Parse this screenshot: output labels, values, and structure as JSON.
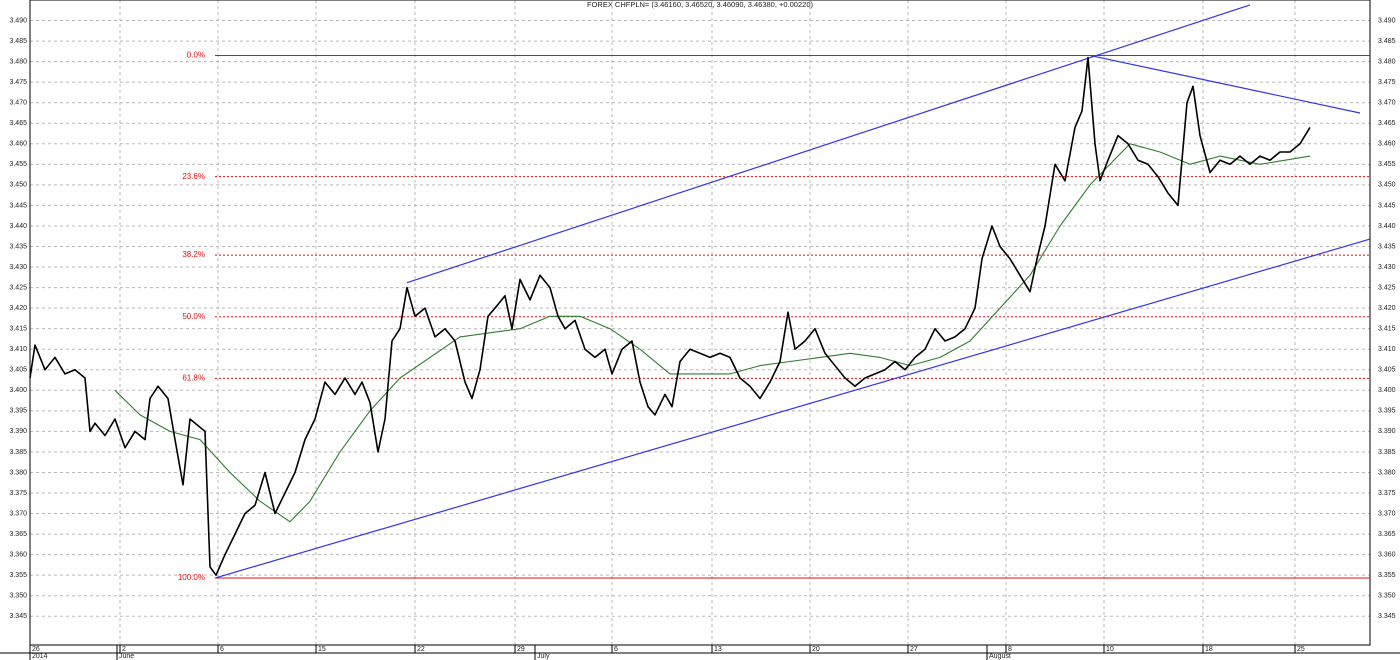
{
  "chart_data": {
    "type": "line",
    "title": "FOREX CHFPLN= (3.46160, 3.46520, 3.46090, 3.46380, +0.00220)",
    "xlim": [
      0,
      134
    ],
    "ylim": [
      3.338,
      3.495
    ],
    "grid": true,
    "xticks": [
      {
        "value": 0,
        "label": "26"
      },
      {
        "value": 9,
        "label": "2"
      },
      {
        "value": 18.8,
        "label": "6"
      },
      {
        "value": 28.6,
        "label": "15"
      },
      {
        "value": 38.5,
        "label": "22"
      },
      {
        "value": 48.5,
        "label": "29"
      },
      {
        "value": 58.2,
        "label": "6"
      },
      {
        "value": 68.2,
        "label": "13"
      },
      {
        "value": 78,
        "label": "20"
      },
      {
        "value": 87.8,
        "label": "27"
      },
      {
        "value": 97.6,
        "label": "8"
      },
      {
        "value": 107.4,
        "label": "10"
      },
      {
        "value": 117.3,
        "label": "18"
      },
      {
        "value": 126.5,
        "label": "25"
      }
    ],
    "period_labels": [
      {
        "value": 0,
        "label": "2014"
      },
      {
        "value": 8.7,
        "label": "June"
      },
      {
        "value": 50.5,
        "label": "July"
      },
      {
        "value": 95.7,
        "label": "August"
      }
    ],
    "yticks": [
      {
        "value": 3.345,
        "label": "3.345"
      },
      {
        "value": 3.35,
        "label": "3.350"
      },
      {
        "value": 3.355,
        "label": "3.355"
      },
      {
        "value": 3.36,
        "label": "3.360"
      },
      {
        "value": 3.365,
        "label": "3.365"
      },
      {
        "value": 3.37,
        "label": "3.370"
      },
      {
        "value": 3.375,
        "label": "3.375"
      },
      {
        "value": 3.38,
        "label": "3.380"
      },
      {
        "value": 3.385,
        "label": "3.385"
      },
      {
        "value": 3.39,
        "label": "3.390"
      },
      {
        "value": 3.395,
        "label": "3.395"
      },
      {
        "value": 3.4,
        "label": "3.400"
      },
      {
        "value": 3.405,
        "label": "3.405"
      },
      {
        "value": 3.41,
        "label": "3.410"
      },
      {
        "value": 3.415,
        "label": "3.415"
      },
      {
        "value": 3.42,
        "label": "3.420"
      },
      {
        "value": 3.425,
        "label": "3.425"
      },
      {
        "value": 3.43,
        "label": "3.430"
      },
      {
        "value": 3.435,
        "label": "3.435"
      },
      {
        "value": 3.44,
        "label": "3.440"
      },
      {
        "value": 3.445,
        "label": "3.445"
      },
      {
        "value": 3.45,
        "label": "3.450"
      },
      {
        "value": 3.455,
        "label": "3.455"
      },
      {
        "value": 3.46,
        "label": "3.460"
      },
      {
        "value": 3.465,
        "label": "3.465"
      },
      {
        "value": 3.47,
        "label": "3.470"
      },
      {
        "value": 3.475,
        "label": "3.475"
      },
      {
        "value": 3.48,
        "label": "3.480"
      },
      {
        "value": 3.485,
        "label": "3.485"
      },
      {
        "value": 3.49,
        "label": "3.490"
      }
    ],
    "series": [
      {
        "color": "#000000",
        "x": [
          0,
          0.5,
          1.5,
          2.5,
          3.5,
          4.5,
          5.5,
          6,
          6.5,
          7.5,
          8.5,
          9.5,
          10.5,
          11.5,
          12,
          12.8,
          13.8,
          14.5,
          15.3,
          16,
          17,
          17.5,
          18,
          18.6,
          19.5,
          20.5,
          21.5,
          22.5,
          23.5,
          24.5,
          25.5,
          26.5,
          27.5,
          28.5,
          29.5,
          30.5,
          31.5,
          32.5,
          33.2,
          34,
          34.8,
          35.5,
          36.2,
          37,
          37.7,
          38.5,
          39.5,
          40.5,
          41.5,
          42.5,
          43.5,
          44.2,
          45,
          45.8,
          46.5,
          47.5,
          48.2,
          49,
          50,
          51,
          52,
          52.8,
          53.5,
          54.5,
          55.5,
          56.5,
          57.5,
          58.2,
          59.2,
          60.2,
          61,
          61.8,
          62.5,
          63.5,
          64.2,
          65,
          66,
          67,
          68,
          69,
          70,
          71,
          72,
          73,
          74,
          75,
          75.8,
          76.5,
          77.5,
          78.5,
          79.5,
          80.5,
          81.5,
          82.5,
          83.5,
          84.5,
          85.5,
          86.5,
          87.5,
          88.5,
          89.5,
          90.5,
          91.5,
          92.5,
          93.5,
          94.5,
          95.2,
          96.2,
          97,
          98,
          99,
          100,
          100.7,
          101.5,
          102.5,
          103.5,
          104.5,
          105.2,
          105.8,
          106.5,
          107,
          107.8,
          108.8,
          109.8,
          110.8,
          111.8,
          112.8,
          113.8,
          114.8,
          115.7,
          116.3,
          117,
          118,
          119,
          120,
          121,
          122,
          123,
          124,
          125,
          126,
          127,
          128
        ],
        "values": [
          3.403,
          3.411,
          3.405,
          3.408,
          3.404,
          3.405,
          3.403,
          3.39,
          3.392,
          3.389,
          3.393,
          3.386,
          3.39,
          3.388,
          3.398,
          3.401,
          3.398,
          3.388,
          3.377,
          3.393,
          3.391,
          3.39,
          3.357,
          3.355,
          3.36,
          3.365,
          3.37,
          3.372,
          3.38,
          3.37,
          3.375,
          3.38,
          3.388,
          3.393,
          3.402,
          3.399,
          3.403,
          3.399,
          3.402,
          3.397,
          3.385,
          3.393,
          3.412,
          3.415,
          3.425,
          3.418,
          3.42,
          3.413,
          3.415,
          3.412,
          3.402,
          3.398,
          3.405,
          3.418,
          3.42,
          3.423,
          3.415,
          3.427,
          3.422,
          3.428,
          3.425,
          3.418,
          3.415,
          3.417,
          3.41,
          3.408,
          3.41,
          3.404,
          3.41,
          3.412,
          3.402,
          3.396,
          3.394,
          3.399,
          3.396,
          3.407,
          3.41,
          3.409,
          3.408,
          3.409,
          3.408,
          3.403,
          3.401,
          3.398,
          3.402,
          3.407,
          3.419,
          3.41,
          3.412,
          3.415,
          3.409,
          3.406,
          3.403,
          3.401,
          3.403,
          3.404,
          3.405,
          3.407,
          3.405,
          3.408,
          3.41,
          3.415,
          3.412,
          3.413,
          3.415,
          3.42,
          3.432,
          3.44,
          3.435,
          3.432,
          3.428,
          3.424,
          3.432,
          3.44,
          3.455,
          3.451,
          3.464,
          3.468,
          3.481,
          3.46,
          3.451,
          3.456,
          3.462,
          3.46,
          3.456,
          3.455,
          3.452,
          3.448,
          3.445,
          3.47,
          3.474,
          3.462,
          3.453,
          3.456,
          3.455,
          3.457,
          3.455,
          3.457,
          3.456,
          3.458,
          3.458,
          3.46,
          3.464
        ]
      },
      {
        "color": "#2e7d2e",
        "x": [
          8.5,
          11,
          14,
          17,
          20,
          23,
          26,
          28,
          31,
          34,
          37,
          40,
          43,
          46,
          49,
          52,
          55,
          58,
          61,
          64,
          67,
          70,
          73,
          76,
          79,
          82,
          85,
          88,
          91,
          94,
          97,
          100,
          103,
          106,
          108,
          110,
          113,
          116,
          119,
          123,
          128
        ],
        "values": [
          3.4,
          3.394,
          3.39,
          3.388,
          3.38,
          3.373,
          3.368,
          3.373,
          3.385,
          3.395,
          3.403,
          3.408,
          3.413,
          3.414,
          3.415,
          3.418,
          3.418,
          3.415,
          3.41,
          3.404,
          3.404,
          3.404,
          3.406,
          3.407,
          3.408,
          3.409,
          3.408,
          3.406,
          3.408,
          3.412,
          3.42,
          3.428,
          3.44,
          3.45,
          3.455,
          3.46,
          3.458,
          3.455,
          3.457,
          3.455,
          3.457
        ]
      }
    ],
    "trendline_color": "#3333ee",
    "trendlines": [
      {
        "x": [
          37.7,
          122
        ],
        "values": [
          3.4262,
          3.4938
        ]
      },
      {
        "x": [
          18.5,
          134
        ],
        "values": [
          3.3543,
          3.4368
        ]
      },
      {
        "x": [
          106,
          133
        ],
        "values": [
          3.4815,
          3.4675
        ]
      }
    ],
    "fib_color": "#e01010",
    "fib_start": 18.5,
    "fib_levels": [
      {
        "value": 3.4815,
        "label": "0.0%"
      },
      {
        "value": 3.452,
        "label": "23.6%"
      },
      {
        "value": 3.4329,
        "label": "38.2%"
      },
      {
        "value": 3.4179,
        "label": "50.0%"
      },
      {
        "value": 3.4029,
        "label": "61.8%"
      },
      {
        "value": 3.3543,
        "label": "100.0%"
      }
    ]
  }
}
